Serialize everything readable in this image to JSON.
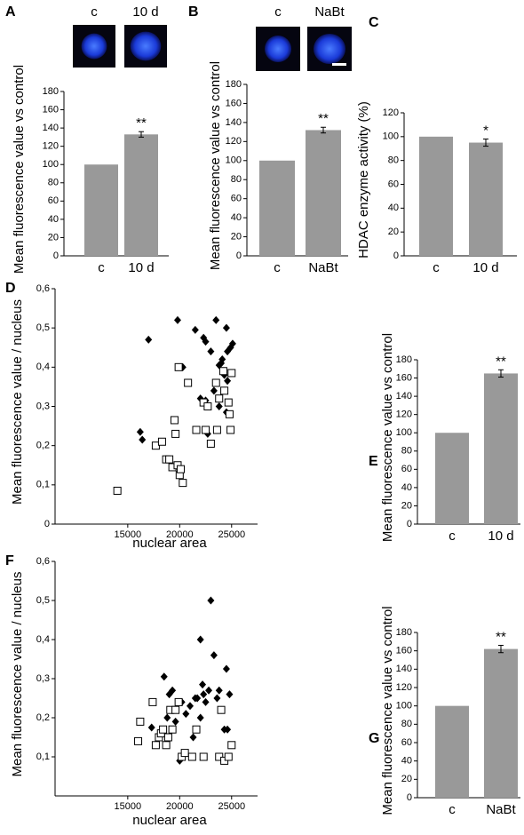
{
  "chart_data": [
    {
      "type": "bar",
      "panel": "A",
      "image_labels": [
        "c",
        "10 d"
      ],
      "ylabel": "Mean fluorescence value vs control",
      "categories": [
        "c",
        "10 d"
      ],
      "values": [
        100,
        133
      ],
      "errors": [
        null,
        3
      ],
      "significance": "**",
      "color": "#999999",
      "ylim": [
        0,
        180
      ],
      "yticks": [
        0,
        20,
        40,
        60,
        80,
        100,
        120,
        140,
        160,
        180
      ]
    },
    {
      "type": "bar",
      "panel": "B",
      "image_labels": [
        "c",
        "NaBt"
      ],
      "ylabel": "Mean fluorescence value vs control",
      "categories": [
        "c",
        "NaBt"
      ],
      "values": [
        100,
        132
      ],
      "errors": [
        null,
        3
      ],
      "significance": "**",
      "color": "#999999",
      "ylim": [
        0,
        180
      ],
      "yticks": [
        0,
        20,
        40,
        60,
        80,
        100,
        120,
        140,
        160,
        180
      ]
    },
    {
      "type": "bar",
      "panel": "C",
      "ylabel": "HDAC enzyme activity (%)",
      "categories": [
        "c",
        "10 d"
      ],
      "values": [
        100,
        95
      ],
      "errors": [
        null,
        3
      ],
      "significance": "*",
      "color": "#999999",
      "ylim": [
        0,
        120
      ],
      "yticks": [
        0,
        20,
        40,
        60,
        80,
        100,
        120
      ]
    },
    {
      "type": "scatter",
      "panel": "D",
      "xlabel": "nuclear area",
      "ylabel": "Mean fluorescence value / nucleus",
      "xlim": [
        8000,
        27500
      ],
      "xticks": [
        15000,
        20000,
        25000
      ],
      "ylim": [
        0,
        0.6
      ],
      "yticks": [
        0,
        {
          "value": 0.1,
          "label": "0,1"
        },
        {
          "value": 0.2,
          "label": "0,2"
        },
        {
          "value": 0.3,
          "label": "0,3"
        },
        {
          "value": 0.4,
          "label": "0,4"
        },
        {
          "value": 0.5,
          "label": "0,5"
        },
        {
          "value": 0.6,
          "label": "0,6"
        }
      ],
      "series": [
        {
          "marker": "diamond",
          "color": "#000000",
          "x": [
            17000,
            16200,
            16400,
            19800,
            20300,
            21500,
            22300,
            22500,
            23000,
            23500,
            24500,
            23800,
            24000,
            24300,
            24600,
            24900,
            25100,
            22000,
            22500,
            23300,
            24600,
            24500,
            22700,
            23800,
            24100
          ],
          "values": [
            0.47,
            0.235,
            0.215,
            0.52,
            0.4,
            0.495,
            0.475,
            0.465,
            0.44,
            0.52,
            0.5,
            0.405,
            0.41,
            0.38,
            0.44,
            0.45,
            0.46,
            0.32,
            0.315,
            0.34,
            0.365,
            0.285,
            0.23,
            0.3,
            0.42
          ]
        },
        {
          "marker": "square",
          "color": "#000000",
          "x": [
            14000,
            17700,
            18300,
            18700,
            19000,
            19300,
            19500,
            19600,
            19800,
            20000,
            20100,
            20300,
            19900,
            20800,
            21600,
            22300,
            22700,
            22500,
            23000,
            23600,
            23500,
            23800,
            24200,
            24300,
            24700,
            24800,
            25000,
            24900
          ],
          "values": [
            0.085,
            0.2,
            0.21,
            0.165,
            0.165,
            0.145,
            0.265,
            0.23,
            0.15,
            0.125,
            0.14,
            0.105,
            0.4,
            0.36,
            0.24,
            0.31,
            0.3,
            0.24,
            0.205,
            0.24,
            0.36,
            0.32,
            0.39,
            0.34,
            0.31,
            0.28,
            0.385,
            0.24
          ]
        }
      ]
    },
    {
      "type": "bar",
      "panel": "E",
      "ylabel": "Mean fluorescence value vs control",
      "categories": [
        "c",
        "10 d"
      ],
      "values": [
        100,
        165
      ],
      "errors": [
        null,
        4
      ],
      "significance": "**",
      "color": "#999999",
      "ylim": [
        0,
        180
      ],
      "yticks": [
        0,
        20,
        40,
        60,
        80,
        100,
        120,
        140,
        160,
        180
      ]
    },
    {
      "type": "scatter",
      "panel": "F",
      "xlabel": "nuclear area",
      "ylabel": "Mean fluorescence value / nucleus",
      "xlim": [
        8000,
        27500
      ],
      "xticks": [
        15000,
        20000,
        25000
      ],
      "ylim": [
        0,
        0.6
      ],
      "yticks": [
        {
          "value": 0.1,
          "label": "0,1"
        },
        {
          "value": 0.2,
          "label": "0,2"
        },
        {
          "value": 0.3,
          "label": "0,3"
        },
        {
          "value": 0.4,
          "label": "0,4"
        },
        {
          "value": 0.5,
          "label": "0,5"
        },
        {
          "value": 0.6,
          "label": "0,6"
        }
      ],
      "series": [
        {
          "marker": "diamond",
          "color": "#000000",
          "x": [
            17300,
            18500,
            18800,
            19000,
            19300,
            19600,
            20000,
            20200,
            20600,
            21000,
            21500,
            21700,
            22000,
            22200,
            22300,
            22500,
            22800,
            23000,
            23300,
            23600,
            23800,
            24000,
            24300,
            24500,
            24600,
            24800,
            22000,
            21300
          ],
          "values": [
            0.175,
            0.305,
            0.2,
            0.26,
            0.27,
            0.19,
            0.09,
            0.24,
            0.21,
            0.23,
            0.25,
            0.25,
            0.4,
            0.285,
            0.26,
            0.24,
            0.27,
            0.5,
            0.36,
            0.25,
            0.27,
            0.22,
            0.17,
            0.325,
            0.17,
            0.26,
            0.2,
            0.15
          ]
        },
        {
          "marker": "square",
          "color": "#000000",
          "x": [
            16000,
            16200,
            17400,
            17700,
            18000,
            18200,
            18400,
            18700,
            18900,
            19100,
            19300,
            19600,
            19900,
            20200,
            20500,
            21200,
            21600,
            22300,
            23800,
            24000,
            24300,
            24700,
            25000
          ],
          "values": [
            0.14,
            0.19,
            0.24,
            0.13,
            0.15,
            0.16,
            0.17,
            0.13,
            0.15,
            0.22,
            0.17,
            0.22,
            0.24,
            0.1,
            0.11,
            0.1,
            0.17,
            0.1,
            0.1,
            0.22,
            0.09,
            0.1,
            0.13
          ]
        }
      ]
    },
    {
      "type": "bar",
      "panel": "G",
      "ylabel": "Mean fluorescence value vs control",
      "categories": [
        "c",
        "NaBt"
      ],
      "values": [
        100,
        162
      ],
      "errors": [
        null,
        4
      ],
      "significance": "**",
      "color": "#999999",
      "ylim": [
        0,
        180
      ],
      "yticks": [
        0,
        20,
        40,
        60,
        80,
        100,
        120,
        140,
        160,
        180
      ]
    }
  ]
}
